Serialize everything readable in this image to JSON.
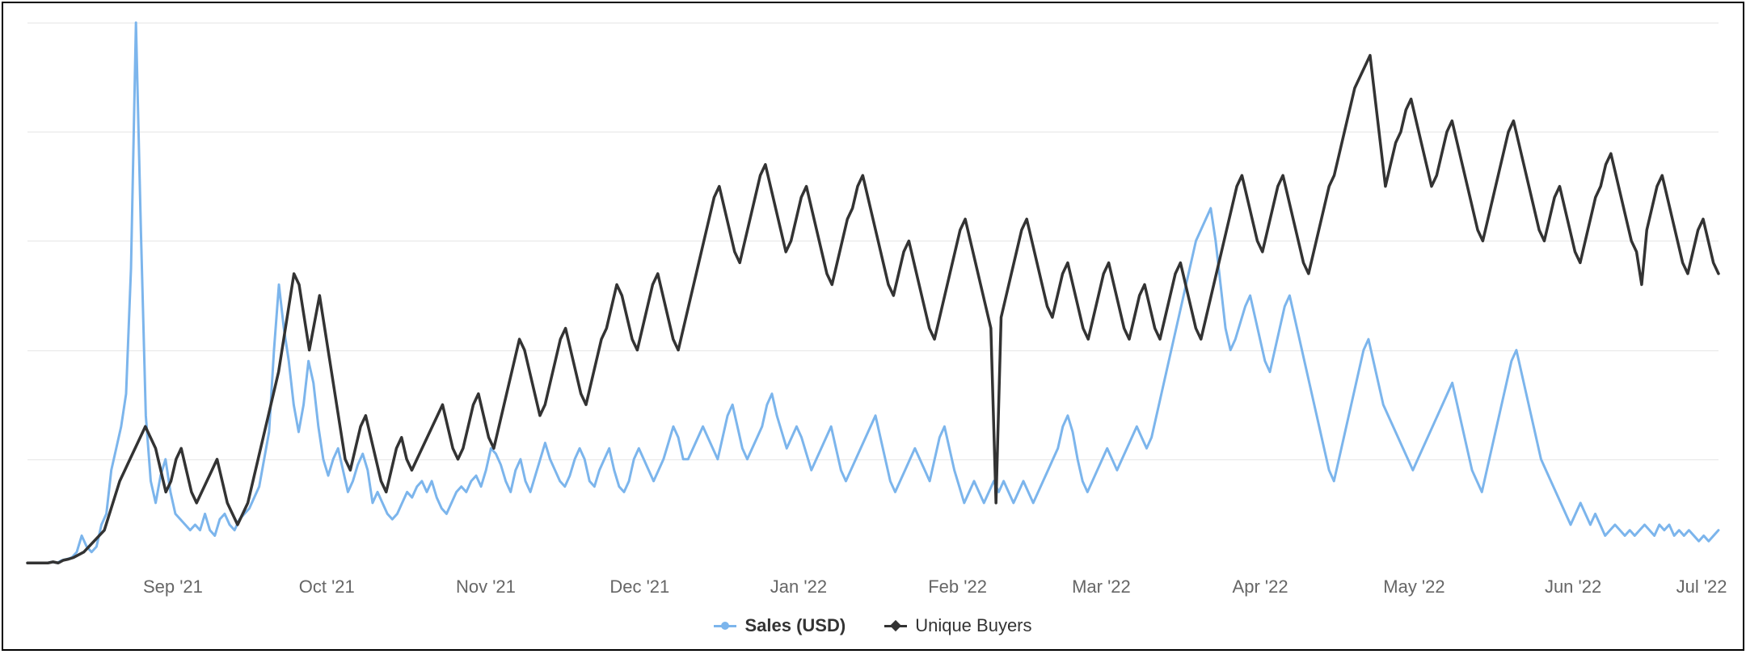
{
  "chart": {
    "type": "line",
    "background_color": "#ffffff",
    "border_color": "#000000",
    "grid_color": "#e6e6e6",
    "axis_label_color": "#666666",
    "axis_label_fontsize": 22,
    "x_axis_labels": [
      "Sep '21",
      "Oct '21",
      "Nov '21",
      "Dec '21",
      "Jan '22",
      "Feb '22",
      "Mar '22",
      "Apr '22",
      "May '22",
      "Jun '22",
      "Jul '22"
    ],
    "x_label_positions_pct": [
      8.6,
      17.7,
      27.1,
      36.2,
      45.6,
      55.0,
      63.5,
      72.9,
      82.0,
      91.4,
      99.0
    ],
    "y_gridlines_pct": [
      0,
      20,
      40,
      60,
      80
    ],
    "legend": {
      "items": [
        {
          "label": "Sales (USD)",
          "color": "#7cb5ec",
          "weight": "bold",
          "marker": "circle"
        },
        {
          "label": "Unique Buyers",
          "color": "#333333",
          "weight": "normal",
          "marker": "diamond"
        }
      ]
    },
    "series": [
      {
        "name": "Sales (USD)",
        "color": "#7cb5ec",
        "line_width": 3,
        "values": [
          99,
          99,
          99,
          99,
          99,
          98.8,
          99,
          98.5,
          98.3,
          98,
          97,
          94,
          96,
          97,
          96,
          92,
          90,
          82,
          78,
          74,
          68,
          45,
          0,
          38,
          72,
          84,
          88,
          83,
          80,
          86,
          90,
          91,
          92,
          93,
          92,
          93,
          90,
          93,
          94,
          91,
          90,
          92,
          93,
          91,
          90,
          89,
          87,
          85,
          80,
          75,
          60,
          48,
          56,
          62,
          70,
          75,
          70,
          62,
          66,
          74,
          80,
          83,
          80,
          78,
          82,
          86,
          84,
          81,
          79,
          82,
          88,
          86,
          88,
          90,
          91,
          90,
          88,
          86,
          87,
          85,
          84,
          86,
          84,
          87,
          89,
          90,
          88,
          86,
          85,
          86,
          84,
          83,
          85,
          82,
          78,
          79,
          81,
          84,
          86,
          82,
          80,
          84,
          86,
          83,
          80,
          77,
          80,
          82,
          84,
          85,
          83,
          80,
          78,
          80,
          84,
          85,
          82,
          80,
          78,
          82,
          85,
          86,
          84,
          80,
          78,
          80,
          82,
          84,
          82,
          80,
          77,
          74,
          76,
          80,
          80,
          78,
          76,
          74,
          76,
          78,
          80,
          76,
          72,
          70,
          74,
          78,
          80,
          78,
          76,
          74,
          70,
          68,
          72,
          75,
          78,
          76,
          74,
          76,
          79,
          82,
          80,
          78,
          76,
          74,
          78,
          82,
          84,
          82,
          80,
          78,
          76,
          74,
          72,
          76,
          80,
          84,
          86,
          84,
          82,
          80,
          78,
          80,
          82,
          84,
          80,
          76,
          74,
          78,
          82,
          85,
          88,
          86,
          84,
          86,
          88,
          86,
          84,
          86,
          84,
          86,
          88,
          86,
          84,
          86,
          88,
          86,
          84,
          82,
          80,
          78,
          74,
          72,
          75,
          80,
          84,
          86,
          84,
          82,
          80,
          78,
          80,
          82,
          80,
          78,
          76,
          74,
          76,
          78,
          76,
          72,
          68,
          64,
          60,
          56,
          52,
          48,
          44,
          40,
          38,
          36,
          34,
          40,
          48,
          56,
          60,
          58,
          55,
          52,
          50,
          54,
          58,
          62,
          64,
          60,
          56,
          52,
          50,
          54,
          58,
          62,
          66,
          70,
          74,
          78,
          82,
          84,
          80,
          76,
          72,
          68,
          64,
          60,
          58,
          62,
          66,
          70,
          72,
          74,
          76,
          78,
          80,
          82,
          80,
          78,
          76,
          74,
          72,
          70,
          68,
          66,
          70,
          74,
          78,
          82,
          84,
          86,
          82,
          78,
          74,
          70,
          66,
          62,
          60,
          64,
          68,
          72,
          76,
          80,
          82,
          84,
          86,
          88,
          90,
          92,
          90,
          88,
          90,
          92,
          90,
          92,
          94,
          93,
          92,
          93,
          94,
          93,
          94,
          93,
          92,
          93,
          94,
          92,
          93,
          92,
          94,
          93,
          94,
          93,
          94,
          95,
          94,
          95,
          94,
          93
        ]
      },
      {
        "name": "Unique Buyers",
        "color": "#333333",
        "line_width": 3.5,
        "values": [
          99,
          99,
          99,
          99,
          99,
          98.8,
          99,
          98.5,
          98.3,
          98,
          97.5,
          97,
          96,
          95,
          94,
          93,
          90,
          87,
          84,
          82,
          80,
          78,
          76,
          74,
          76,
          78,
          82,
          86,
          84,
          80,
          78,
          82,
          86,
          88,
          86,
          84,
          82,
          80,
          84,
          88,
          90,
          92,
          90,
          88,
          84,
          80,
          76,
          72,
          68,
          64,
          58,
          52,
          46,
          48,
          54,
          60,
          55,
          50,
          56,
          62,
          68,
          74,
          80,
          82,
          78,
          74,
          72,
          76,
          80,
          84,
          86,
          82,
          78,
          76,
          80,
          82,
          80,
          78,
          76,
          74,
          72,
          70,
          74,
          78,
          80,
          78,
          74,
          70,
          68,
          72,
          76,
          78,
          74,
          70,
          66,
          62,
          58,
          60,
          64,
          68,
          72,
          70,
          66,
          62,
          58,
          56,
          60,
          64,
          68,
          70,
          66,
          62,
          58,
          56,
          52,
          48,
          50,
          54,
          58,
          60,
          56,
          52,
          48,
          46,
          50,
          54,
          58,
          60,
          56,
          52,
          48,
          44,
          40,
          36,
          32,
          30,
          34,
          38,
          42,
          44,
          40,
          36,
          32,
          28,
          26,
          30,
          34,
          38,
          42,
          40,
          36,
          32,
          30,
          34,
          38,
          42,
          46,
          48,
          44,
          40,
          36,
          34,
          30,
          28,
          32,
          36,
          40,
          44,
          48,
          50,
          46,
          42,
          40,
          44,
          48,
          52,
          56,
          58,
          54,
          50,
          46,
          42,
          38,
          36,
          40,
          44,
          48,
          52,
          56,
          88,
          54,
          50,
          46,
          42,
          38,
          36,
          40,
          44,
          48,
          52,
          54,
          50,
          46,
          44,
          48,
          52,
          56,
          58,
          54,
          50,
          46,
          44,
          48,
          52,
          56,
          58,
          54,
          50,
          48,
          52,
          56,
          58,
          54,
          50,
          46,
          44,
          48,
          52,
          56,
          58,
          54,
          50,
          46,
          42,
          38,
          34,
          30,
          28,
          32,
          36,
          40,
          42,
          38,
          34,
          30,
          28,
          32,
          36,
          40,
          44,
          46,
          42,
          38,
          34,
          30,
          28,
          24,
          20,
          16,
          12,
          10,
          8,
          6,
          14,
          22,
          30,
          26,
          22,
          20,
          16,
          14,
          18,
          22,
          26,
          30,
          28,
          24,
          20,
          18,
          22,
          26,
          30,
          34,
          38,
          40,
          36,
          32,
          28,
          24,
          20,
          18,
          22,
          26,
          30,
          34,
          38,
          40,
          36,
          32,
          30,
          34,
          38,
          42,
          44,
          40,
          36,
          32,
          30,
          26,
          24,
          28,
          32,
          36,
          40,
          42,
          48,
          38,
          34,
          30,
          28,
          32,
          36,
          40,
          44,
          46,
          42,
          38,
          36,
          40,
          44,
          46
        ]
      }
    ]
  }
}
